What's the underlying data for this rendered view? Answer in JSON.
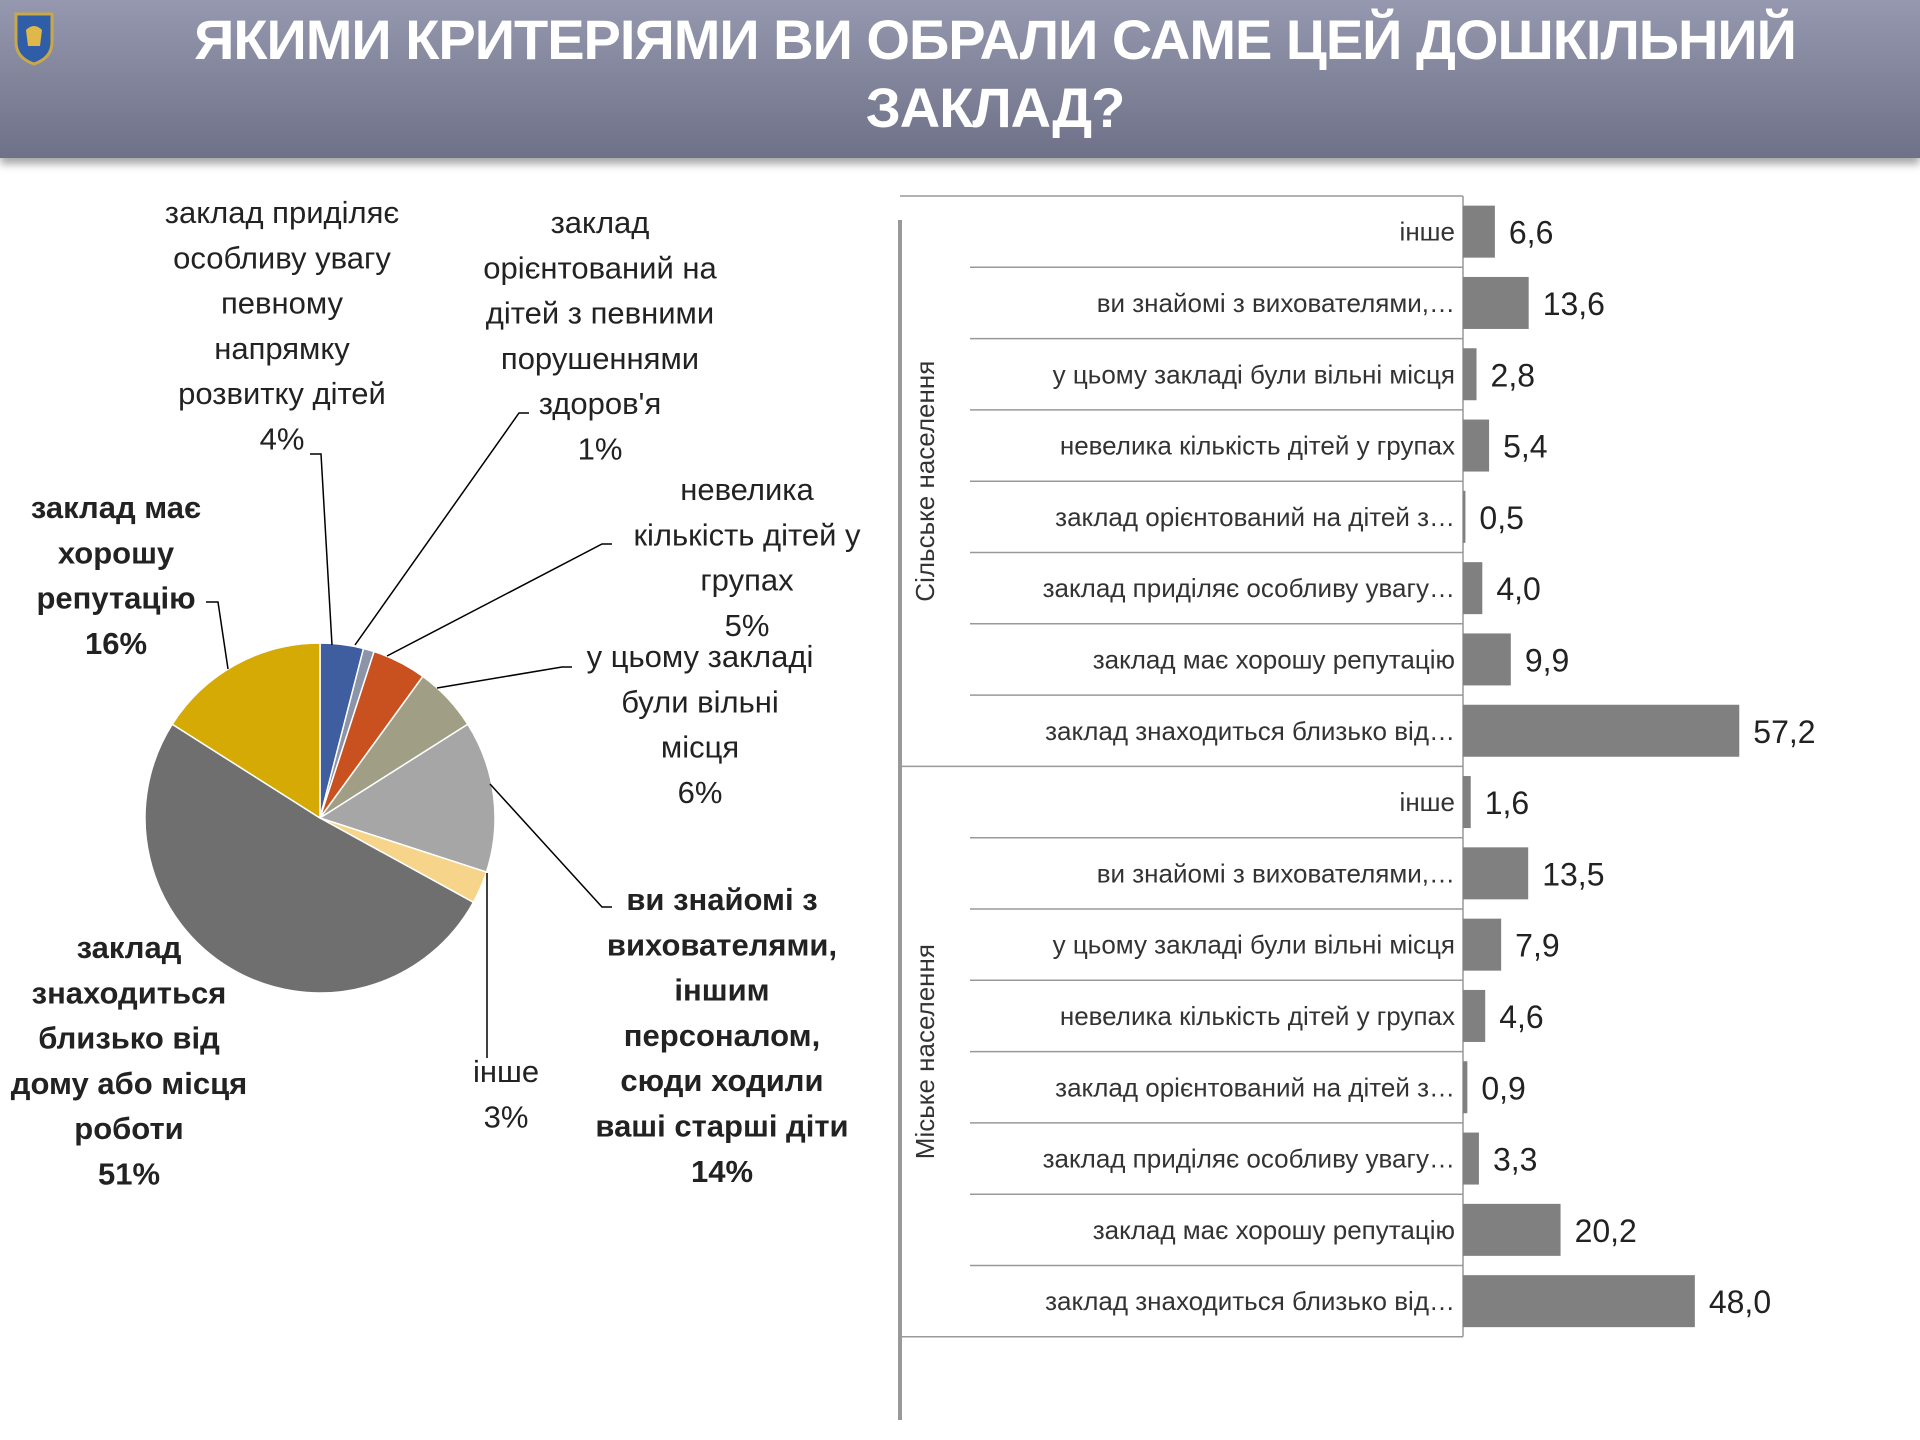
{
  "header": {
    "title": "ЯКИМИ КРИТЕРІЯМИ ВИ ОБРАЛИ САМЕ ЦЕЙ ДОШКІЛЬНИЙ ЗАКЛАД?"
  },
  "chart_data": [
    {
      "type": "pie",
      "title": "",
      "start": "top",
      "direction": "clockwise",
      "slices": [
        {
          "label": [
            "заклад приділяє",
            "особливу увагу",
            "певному",
            "напрямку",
            "розвитку дітей",
            "4%"
          ],
          "value": 4,
          "color": "#3e5ea0",
          "bold": false
        },
        {
          "label": [
            "заклад",
            "орієнтований на",
            "дітей з певними",
            "порушеннями",
            "здоров'я",
            "1%"
          ],
          "value": 1,
          "color": "#8c95a8",
          "bold": false
        },
        {
          "label": [
            "невелика",
            "кількість дітей у",
            "групах",
            "5%"
          ],
          "value": 5,
          "color": "#c9501f",
          "bold": false
        },
        {
          "label": [
            "у цьому закладі",
            "були вільні",
            "місця",
            "6%"
          ],
          "value": 6,
          "color": "#a09f86",
          "bold": false
        },
        {
          "label": [
            "ви знайомі з",
            "вихователями,",
            "іншим",
            "персоналом,",
            "сюди ходили",
            "ваші старші діти",
            "14%"
          ],
          "value": 14,
          "color": "#a6a6a6",
          "bold": true
        },
        {
          "label": [
            "інше",
            "3%"
          ],
          "value": 3,
          "color": "#f6d48a",
          "bold": false
        },
        {
          "label": [
            "заклад",
            "знаходиться",
            "близько від",
            "дому або місця",
            "роботи",
            "51%"
          ],
          "value": 51,
          "color": "#6f6f6f",
          "bold": true
        },
        {
          "label": [
            "заклад має",
            "хорошу",
            "репутацію",
            "16%"
          ],
          "value": 16,
          "color": "#d5aa05",
          "bold": true
        }
      ]
    },
    {
      "type": "bar",
      "orientation": "horizontal",
      "bar_color": "#808080",
      "groups": [
        {
          "name": "Сільське населення",
          "categories": [
            "інше",
            "ви знайомі з вихователями,…",
            "у цьому закладі були вільні місця",
            "невелика кількість дітей у групах",
            "заклад орієнтований на дітей з…",
            "заклад приділяє особливу увагу…",
            "заклад має хорошу репутацію",
            "заклад знаходиться близько від…"
          ],
          "values": [
            6.6,
            13.6,
            2.8,
            5.4,
            0.5,
            4.0,
            9.9,
            57.2
          ],
          "value_labels": [
            "6,6",
            "13,6",
            "2,8",
            "5,4",
            "0,5",
            "4,0",
            "9,9",
            "57,2"
          ]
        },
        {
          "name": "Міське населення",
          "categories": [
            "інше",
            "ви знайомі з вихователями,…",
            "у цьому закладі були вільні місця",
            "невелика кількість дітей у групах",
            "заклад орієнтований на дітей з…",
            "заклад приділяє особливу увагу…",
            "заклад має хорошу репутацію",
            "заклад знаходиться близько від…"
          ],
          "values": [
            1.6,
            13.5,
            7.9,
            4.6,
            0.9,
            3.3,
            20.2,
            48.0
          ],
          "value_labels": [
            "1,6",
            "13,5",
            "7,9",
            "4,6",
            "0,9",
            "3,3",
            "20,2",
            "48,0"
          ]
        }
      ]
    }
  ]
}
